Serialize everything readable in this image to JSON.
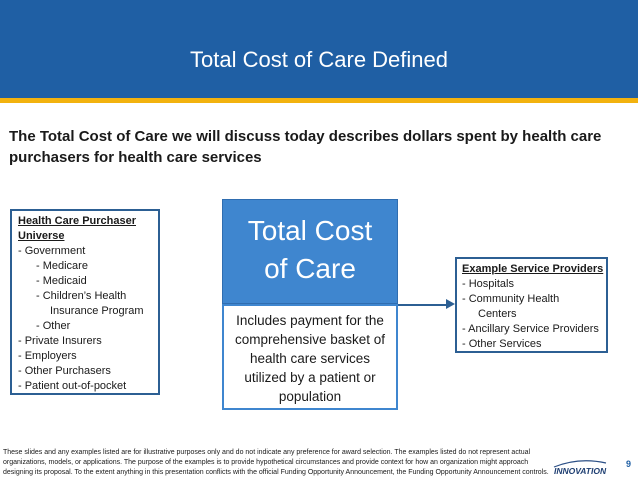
{
  "header": {
    "title": "Total Cost of Care Defined",
    "bar_color": "#1f5fa4",
    "accent_color": "#f2b20f"
  },
  "subtitle": "The Total Cost of Care we will discuss today describes dollars spent by health care purchasers for health care services",
  "purchaser_box": {
    "heading_line1": "Health Care Purchaser",
    "heading_line2": "Universe",
    "items": [
      "- Government",
      "- Medicare",
      "- Medicaid",
      "- Children’s Health",
      "Insurance Program",
      "- Other",
      "- Private Insurers",
      "- Employers",
      "- Other Purchasers",
      "- Patient out-of-pocket"
    ]
  },
  "center": {
    "title_line1": "Total Cost",
    "title_line2": "of Care",
    "description_lines": [
      "Includes payment for the",
      "comprehensive basket of",
      "health care services",
      "utilized by a patient or",
      "population"
    ],
    "fill_color": "#3f86cf"
  },
  "providers_box": {
    "heading": "Example Service Providers",
    "items": [
      "- Hospitals",
      "- Community Health",
      "Centers",
      "- Ancillary Service Providers",
      "- Other Services"
    ]
  },
  "footer": {
    "disclaimer_lines": [
      "These slides and any examples listed are for illustrative purposes only and do not indicate any preference for award selection. The examples listed do not represent actual",
      "organizations, models, or applications. The purpose of the examples is to provide hypothetical circumstances and provide context for how an organization might approach",
      "designing its proposal.  To the extent anything in this presentation conflicts with the official Funding Opportunity Announcement, the Funding Opportunity Announcement controls."
    ],
    "logo_text": "INNOVATION",
    "slide_number": "9"
  }
}
